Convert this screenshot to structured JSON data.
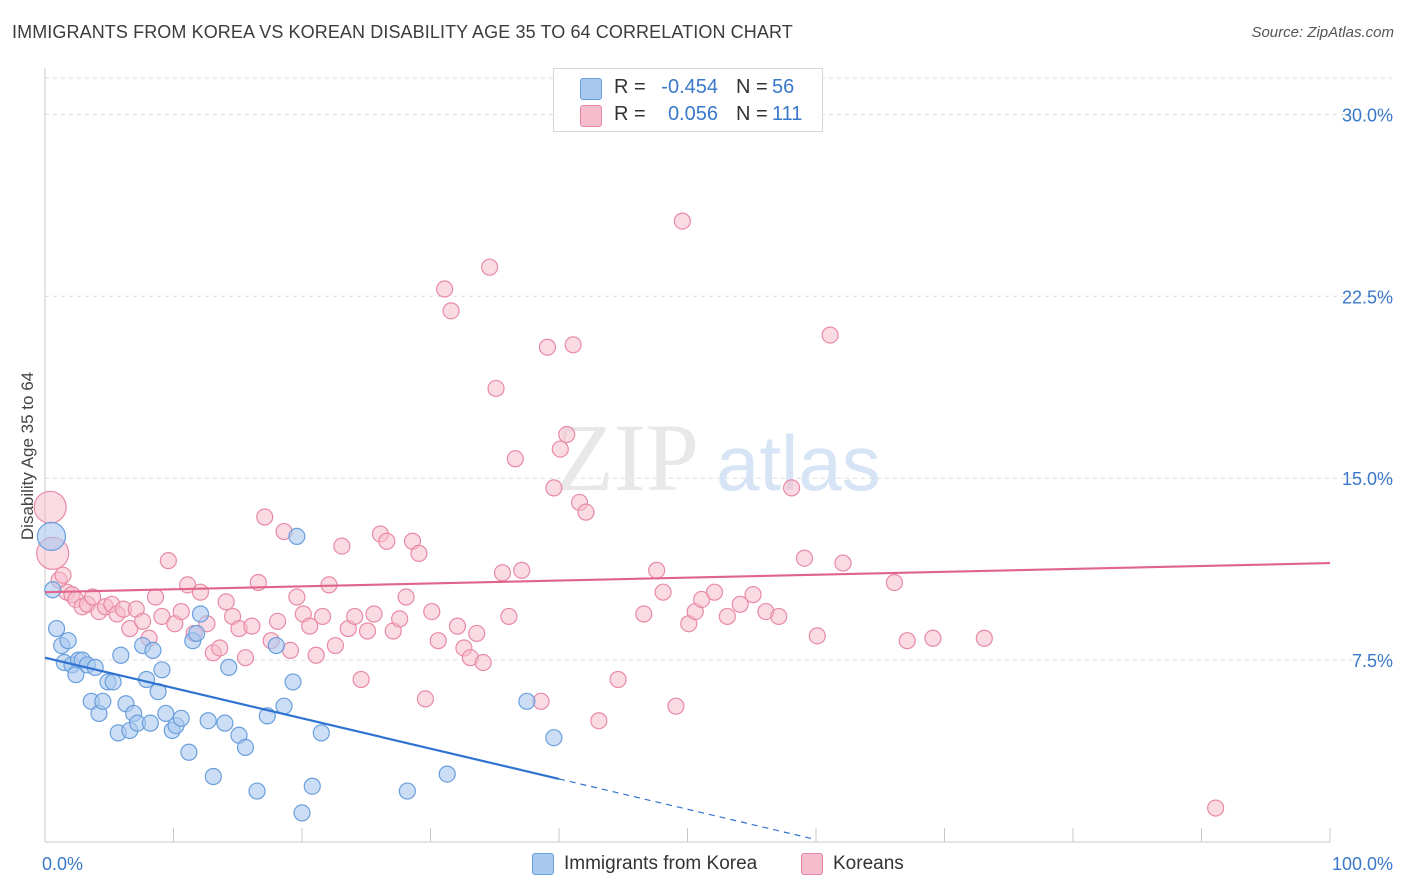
{
  "title": "IMMIGRANTS FROM KOREA VS KOREAN DISABILITY AGE 35 TO 64 CORRELATION CHART",
  "source": "Source: ZipAtlas.com",
  "watermark": {
    "zip": "ZIP",
    "atlas": "atlas"
  },
  "legend": {
    "r_label": "R =",
    "n_label": "N =",
    "series": [
      {
        "r": "-0.454",
        "n": "56"
      },
      {
        "r": "0.056",
        "n": "111"
      }
    ]
  },
  "bottom_legend": [
    "Immigrants from Korea",
    "Koreans"
  ],
  "colors": {
    "blue_fill": "#a9c8ef",
    "blue_stroke": "#6a9fdc",
    "blue_line": "#2f73d0",
    "pink_fill": "#f6bccc",
    "pink_stroke": "#e88aa6",
    "pink_line": "#e0648c",
    "tick_label": "#3a78c9"
  },
  "chart_data": {
    "type": "scatter",
    "title": "IMMIGRANTS FROM KOREA VS KOREAN DISABILITY AGE 35 TO 64 CORRELATION CHART",
    "xlabel": "",
    "ylabel": "Disability Age 35 to 64",
    "xlim": [
      0,
      100
    ],
    "ylim": [
      0,
      31.5
    ],
    "x_tick_labels": [
      "0.0%",
      "100.0%"
    ],
    "y_ticks": [
      7.5,
      15.0,
      22.5,
      30.0
    ],
    "y_tick_labels": [
      "7.5%",
      "15.0%",
      "22.5%",
      "30.0%"
    ],
    "series": [
      {
        "name": "Immigrants from Korea",
        "color": "#6a9fdc",
        "points": [
          [
            0.5,
            12.6
          ],
          [
            0.6,
            10.4
          ],
          [
            0.9,
            8.8
          ],
          [
            1.3,
            8.1
          ],
          [
            1.5,
            7.4
          ],
          [
            1.8,
            8.3
          ],
          [
            2.1,
            7.3
          ],
          [
            2.4,
            6.9
          ],
          [
            2.6,
            7.5
          ],
          [
            2.9,
            7.5
          ],
          [
            3.3,
            7.3
          ],
          [
            3.6,
            5.8
          ],
          [
            3.9,
            7.2
          ],
          [
            4.2,
            5.3
          ],
          [
            4.5,
            5.8
          ],
          [
            4.9,
            6.6
          ],
          [
            5.3,
            6.6
          ],
          [
            5.7,
            4.5
          ],
          [
            5.9,
            7.7
          ],
          [
            6.3,
            5.7
          ],
          [
            6.6,
            4.6
          ],
          [
            6.9,
            5.3
          ],
          [
            7.2,
            4.9
          ],
          [
            7.6,
            8.1
          ],
          [
            7.9,
            6.7
          ],
          [
            8.2,
            4.9
          ],
          [
            8.4,
            7.9
          ],
          [
            8.8,
            6.2
          ],
          [
            9.1,
            7.1
          ],
          [
            9.4,
            5.3
          ],
          [
            9.9,
            4.6
          ],
          [
            10.2,
            4.8
          ],
          [
            10.6,
            5.1
          ],
          [
            11.2,
            3.7
          ],
          [
            11.5,
            8.3
          ],
          [
            11.8,
            8.6
          ],
          [
            12.1,
            9.4
          ],
          [
            12.7,
            5.0
          ],
          [
            13.1,
            2.7
          ],
          [
            14.0,
            4.9
          ],
          [
            14.3,
            7.2
          ],
          [
            15.1,
            4.4
          ],
          [
            15.6,
            3.9
          ],
          [
            16.5,
            2.1
          ],
          [
            17.3,
            5.2
          ],
          [
            18.0,
            8.1
          ],
          [
            18.6,
            5.6
          ],
          [
            19.3,
            6.6
          ],
          [
            19.6,
            12.6
          ],
          [
            20.0,
            1.2
          ],
          [
            20.8,
            2.3
          ],
          [
            21.5,
            4.5
          ],
          [
            28.2,
            2.1
          ],
          [
            31.3,
            2.8
          ],
          [
            37.5,
            5.8
          ],
          [
            39.6,
            4.3
          ]
        ],
        "trendline": {
          "x_solid": [
            0,
            40
          ],
          "y_solid": [
            7.6,
            2.6
          ],
          "x_dashed": [
            40,
            60
          ],
          "y_dashed": [
            2.6,
            0.1
          ]
        }
      },
      {
        "name": "Koreans",
        "color": "#e88aa6",
        "points": [
          [
            0.4,
            13.8
          ],
          [
            0.6,
            11.9
          ],
          [
            1.1,
            10.8
          ],
          [
            1.4,
            11.0
          ],
          [
            1.7,
            10.3
          ],
          [
            2.1,
            10.2
          ],
          [
            2.4,
            10.0
          ],
          [
            2.9,
            9.7
          ],
          [
            3.3,
            9.8
          ],
          [
            3.7,
            10.1
          ],
          [
            4.2,
            9.5
          ],
          [
            4.7,
            9.7
          ],
          [
            5.2,
            9.8
          ],
          [
            5.6,
            9.4
          ],
          [
            6.1,
            9.6
          ],
          [
            6.6,
            8.8
          ],
          [
            7.1,
            9.6
          ],
          [
            7.6,
            9.1
          ],
          [
            8.1,
            8.4
          ],
          [
            8.6,
            10.1
          ],
          [
            9.1,
            9.3
          ],
          [
            9.6,
            11.6
          ],
          [
            10.1,
            9.0
          ],
          [
            10.6,
            9.5
          ],
          [
            11.1,
            10.6
          ],
          [
            11.6,
            8.6
          ],
          [
            12.1,
            10.3
          ],
          [
            12.6,
            9.0
          ],
          [
            13.1,
            7.8
          ],
          [
            13.6,
            8.0
          ],
          [
            14.1,
            9.9
          ],
          [
            14.6,
            9.3
          ],
          [
            15.1,
            8.8
          ],
          [
            15.6,
            7.6
          ],
          [
            16.1,
            8.9
          ],
          [
            16.6,
            10.7
          ],
          [
            17.1,
            13.4
          ],
          [
            17.6,
            8.3
          ],
          [
            18.1,
            9.1
          ],
          [
            18.6,
            12.8
          ],
          [
            19.1,
            7.9
          ],
          [
            19.6,
            10.1
          ],
          [
            20.1,
            9.4
          ],
          [
            20.6,
            8.9
          ],
          [
            21.1,
            7.7
          ],
          [
            21.6,
            9.3
          ],
          [
            22.1,
            10.6
          ],
          [
            22.6,
            8.1
          ],
          [
            23.1,
            12.2
          ],
          [
            23.6,
            8.8
          ],
          [
            24.1,
            9.3
          ],
          [
            24.6,
            6.7
          ],
          [
            25.1,
            8.7
          ],
          [
            25.6,
            9.4
          ],
          [
            26.1,
            12.7
          ],
          [
            26.6,
            12.4
          ],
          [
            27.1,
            8.7
          ],
          [
            27.6,
            9.2
          ],
          [
            28.1,
            10.1
          ],
          [
            28.6,
            12.4
          ],
          [
            29.1,
            11.9
          ],
          [
            29.6,
            5.9
          ],
          [
            30.1,
            9.5
          ],
          [
            30.6,
            8.3
          ],
          [
            31.1,
            22.8
          ],
          [
            31.6,
            21.9
          ],
          [
            32.1,
            8.9
          ],
          [
            32.6,
            8.0
          ],
          [
            33.1,
            7.6
          ],
          [
            33.6,
            8.6
          ],
          [
            34.1,
            7.4
          ],
          [
            34.6,
            23.7
          ],
          [
            35.1,
            18.7
          ],
          [
            35.6,
            11.1
          ],
          [
            36.1,
            9.3
          ],
          [
            36.6,
            15.8
          ],
          [
            37.1,
            11.2
          ],
          [
            38.6,
            5.8
          ],
          [
            39.1,
            20.4
          ],
          [
            39.6,
            14.6
          ],
          [
            40.1,
            16.2
          ],
          [
            40.6,
            16.8
          ],
          [
            41.1,
            20.5
          ],
          [
            41.6,
            14.0
          ],
          [
            42.1,
            13.6
          ],
          [
            43.1,
            5.0
          ],
          [
            44.6,
            6.7
          ],
          [
            46.6,
            9.4
          ],
          [
            47.6,
            11.2
          ],
          [
            48.1,
            10.3
          ],
          [
            49.1,
            5.6
          ],
          [
            49.6,
            25.6
          ],
          [
            50.1,
            9.0
          ],
          [
            50.6,
            9.5
          ],
          [
            51.1,
            10.0
          ],
          [
            52.1,
            10.3
          ],
          [
            53.1,
            9.3
          ],
          [
            54.1,
            9.8
          ],
          [
            55.1,
            10.2
          ],
          [
            56.1,
            9.5
          ],
          [
            57.1,
            9.3
          ],
          [
            58.1,
            14.6
          ],
          [
            59.1,
            11.7
          ],
          [
            60.1,
            8.5
          ],
          [
            61.1,
            20.9
          ],
          [
            62.1,
            11.5
          ],
          [
            66.1,
            10.7
          ],
          [
            67.1,
            8.3
          ],
          [
            69.1,
            8.4
          ],
          [
            73.1,
            8.4
          ],
          [
            91.1,
            1.4
          ]
        ],
        "trendline": {
          "x": [
            0,
            100
          ],
          "y": [
            10.3,
            11.5
          ]
        }
      }
    ],
    "legend_position": "top-center"
  }
}
